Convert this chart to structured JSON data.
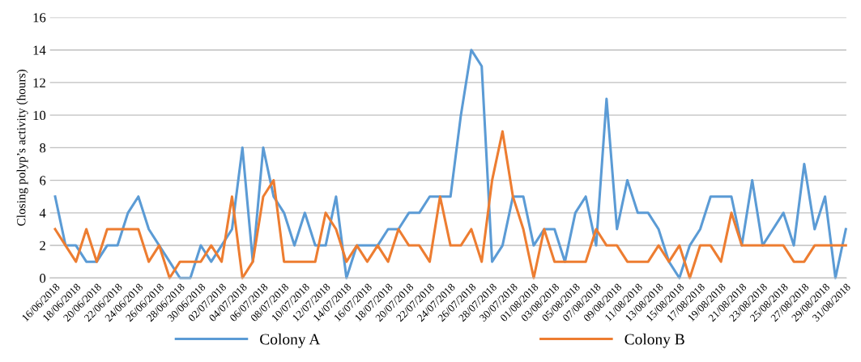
{
  "chart_data": {
    "type": "line",
    "ylabel": "Closing polyp’s activity (hours)",
    "categories": [
      "16/06/2018",
      null,
      "18/06/2018",
      null,
      "20/06/2018",
      null,
      "22/06/2018",
      null,
      "24/06/2018",
      null,
      "26/06/2018",
      null,
      "28/06/2018",
      null,
      "30/06/2018",
      null,
      "02/07/2018",
      null,
      "04/07/2018",
      null,
      "06/07/2018",
      null,
      "08/07/2018",
      null,
      "10/07/2018",
      null,
      "12/07/2018",
      null,
      "14/07/2018",
      null,
      "16/07/2018",
      null,
      "18/07/2018",
      null,
      "20/07/2018",
      null,
      "22/07/2018",
      null,
      "24/07/2018",
      null,
      "26/07/2018",
      null,
      "28/07/2018",
      null,
      "30/07/2018",
      null,
      "01/08/2018",
      null,
      "03/08/2018",
      null,
      "05/08/2018",
      null,
      "07/08/2018",
      null,
      "09/08/2018",
      null,
      "11/08/2018",
      null,
      "13/08/2018",
      null,
      "15/08/2018",
      null,
      "17/08/2018",
      null,
      "19/08/2018",
      null,
      "21/08/2018",
      null,
      "23/08/2018",
      null,
      "25/08/2018",
      null,
      "27/08/2018",
      null,
      "29/08/2018",
      null,
      "31/08/2018"
    ],
    "series": [
      {
        "name": "Colony A",
        "color": "#5b9bd5",
        "values": [
          5,
          2,
          2,
          1,
          1,
          2,
          2,
          4,
          5,
          3,
          2,
          1,
          0,
          0,
          2,
          1,
          2,
          3,
          8,
          1,
          8,
          5,
          4,
          2,
          4,
          2,
          2,
          5,
          0,
          2,
          2,
          2,
          3,
          3,
          4,
          4,
          5,
          5,
          5,
          10,
          14,
          13,
          1,
          2,
          5,
          5,
          2,
          3,
          3,
          1,
          4,
          5,
          2,
          11,
          3,
          6,
          4,
          4,
          3,
          1,
          0,
          2,
          3,
          5,
          5,
          5,
          2,
          6,
          2,
          3,
          4,
          2,
          7,
          3,
          5,
          0,
          3
        ]
      },
      {
        "name": "Colony B",
        "color": "#ed7d31",
        "values": [
          3,
          2,
          1,
          3,
          1,
          3,
          3,
          3,
          3,
          1,
          2,
          0,
          1,
          1,
          1,
          2,
          1,
          5,
          0,
          1,
          5,
          6,
          1,
          1,
          1,
          1,
          4,
          3,
          1,
          2,
          1,
          2,
          1,
          3,
          2,
          2,
          1,
          5,
          2,
          2,
          3,
          1,
          6,
          9,
          5,
          3,
          0,
          3,
          1,
          1,
          1,
          1,
          3,
          2,
          2,
          1,
          1,
          1,
          2,
          1,
          2,
          0,
          2,
          2,
          1,
          4,
          2,
          2,
          2,
          2,
          2,
          1,
          1,
          2,
          2,
          2,
          2
        ]
      }
    ],
    "ylim": [
      0,
      16
    ],
    "yticks": [
      0,
      2,
      4,
      6,
      8,
      10,
      12,
      14,
      16
    ],
    "grid": "y",
    "legend": "bottom",
    "marker": "none",
    "line_style": "solid"
  }
}
